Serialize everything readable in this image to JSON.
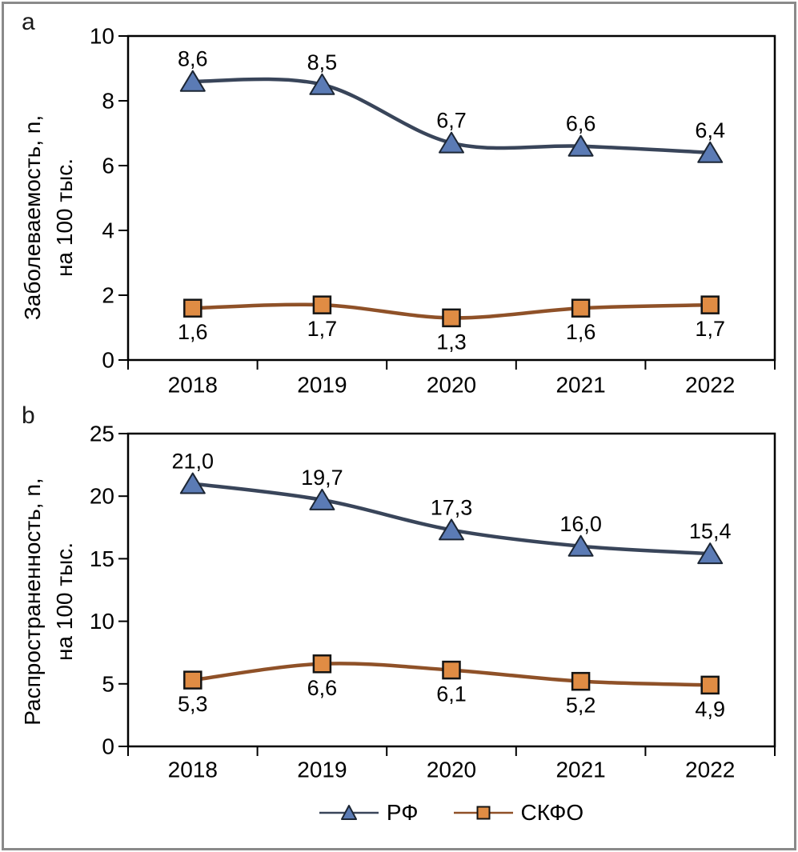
{
  "figure": {
    "background": "#FFFFFF",
    "border_color": "#8A8A8A",
    "axis_color": "#000000"
  },
  "legend": {
    "items": [
      {
        "key": "rf",
        "name": "РФ"
      },
      {
        "key": "skfo",
        "name": "СКФО"
      }
    ],
    "position": "bottom-center"
  },
  "chart_data": [
    {
      "panel_label": "a",
      "type": "line",
      "title": "",
      "xlabel": "",
      "ylabel_line1": "Заболеваемость, n,",
      "ylabel_line2": "на 100 тыс.",
      "categories": [
        "2018",
        "2019",
        "2020",
        "2021",
        "2022"
      ],
      "ylim": [
        0,
        10
      ],
      "yticks": [
        0,
        2,
        4,
        6,
        8,
        10
      ],
      "grid": false,
      "series": [
        {
          "key": "rf",
          "name": "РФ",
          "marker": "triangle",
          "color": "#39455A",
          "marker_fill": "#5B7BB5",
          "marker_stroke": "#1C2634",
          "label_position": "above",
          "values": [
            8.6,
            8.5,
            6.7,
            6.6,
            6.4
          ],
          "labels": [
            "8,6",
            "8,5",
            "6,7",
            "6,6",
            "6,4"
          ]
        },
        {
          "key": "skfo",
          "name": "СКФО",
          "marker": "square",
          "color": "#8F5128",
          "marker_fill": "#E08C44",
          "marker_stroke": "#141414",
          "label_position": "below",
          "values": [
            1.6,
            1.7,
            1.3,
            1.6,
            1.7
          ],
          "labels": [
            "1,6",
            "1,7",
            "1,3",
            "1,6",
            "1,7"
          ]
        }
      ]
    },
    {
      "panel_label": "b",
      "type": "line",
      "title": "",
      "xlabel": "",
      "ylabel_line1": "Распространенность, n,",
      "ylabel_line2": "на 100 тыс.",
      "categories": [
        "2018",
        "2019",
        "2020",
        "2021",
        "2022"
      ],
      "ylim": [
        0,
        25
      ],
      "yticks": [
        0,
        5,
        10,
        15,
        20,
        25
      ],
      "grid": false,
      "series": [
        {
          "key": "rf",
          "name": "РФ",
          "marker": "triangle",
          "color": "#39455A",
          "marker_fill": "#5B7BB5",
          "marker_stroke": "#1C2634",
          "label_position": "above",
          "values": [
            21.0,
            19.7,
            17.3,
            16.0,
            15.4
          ],
          "labels": [
            "21,0",
            "19,7",
            "17,3",
            "16,0",
            "15,4"
          ]
        },
        {
          "key": "skfo",
          "name": "СКФО",
          "marker": "square",
          "color": "#8F5128",
          "marker_fill": "#E08C44",
          "marker_stroke": "#141414",
          "label_position": "below",
          "values": [
            5.3,
            6.6,
            6.1,
            5.2,
            4.9
          ],
          "labels": [
            "5,3",
            "6,6",
            "6,1",
            "5,2",
            "4,9"
          ]
        }
      ]
    }
  ]
}
